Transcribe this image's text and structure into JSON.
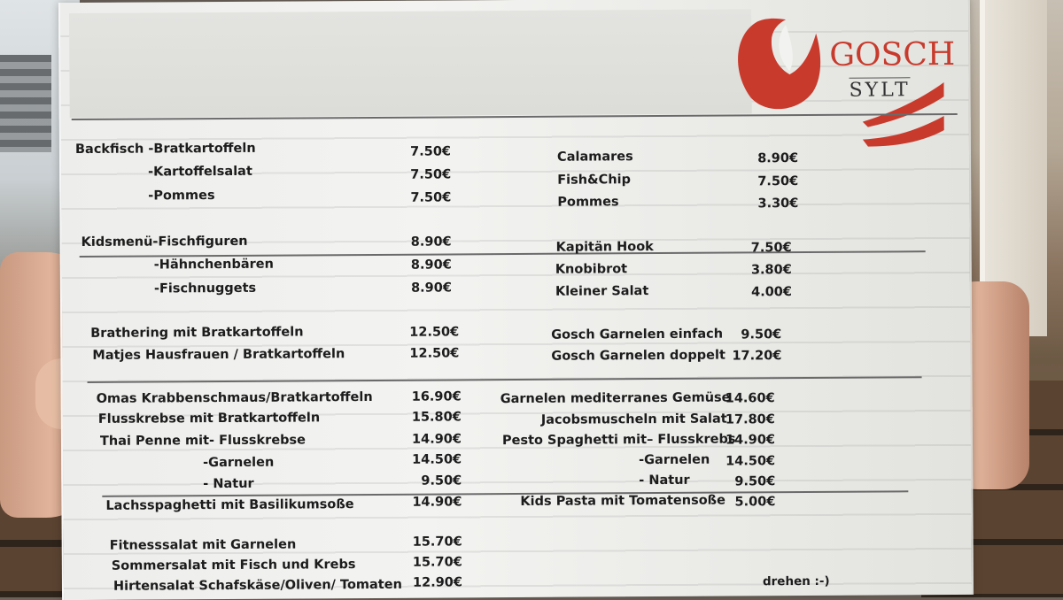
{
  "brand": {
    "name": "GOSCH",
    "location": "SYLT",
    "red": "#c83a2c"
  },
  "left_column": [
    {
      "name": "Backfisch -Bratkartoffeln",
      "price": "7.50€"
    },
    {
      "name": "-Kartoffelsalat",
      "price": "7.50€"
    },
    {
      "name": "-Pommes",
      "price": "7.50€"
    },
    {
      "name": "Kidsmenü-Fischfiguren",
      "price": "8.90€"
    },
    {
      "name": "-Hähnchenbären",
      "price": "8.90€"
    },
    {
      "name": "-Fischnuggets",
      "price": "8.90€"
    },
    {
      "name": "Brathering mit Bratkartoffeln",
      "price": "12.50€"
    },
    {
      "name": "Matjes Hausfrauen / Bratkartoffeln",
      "price": "12.50€"
    },
    {
      "name": "Omas Krabbenschmaus/Bratkartoffeln",
      "price": "16.90€"
    },
    {
      "name": "Flusskrebse mit Bratkartoffeln",
      "price": "15.80€"
    },
    {
      "name": "Thai Penne mit- Flusskrebse",
      "price": "14.90€"
    },
    {
      "name": "-Garnelen",
      "price": "14.50€"
    },
    {
      "name": "- Natur",
      "price": "9.50€"
    },
    {
      "name": "Lachsspaghetti mit Basilikumsoße",
      "price": "14.90€"
    },
    {
      "name": "Fitnesssalat mit Garnelen",
      "price": "15.70€"
    },
    {
      "name": "Sommersalat mit Fisch und Krebs",
      "price": "15.70€"
    },
    {
      "name": "Hirtensalat Schafskäse/Oliven/ Tomaten",
      "price": "12.90€"
    }
  ],
  "right_column": [
    {
      "name": "Calamares",
      "price": "8.90€"
    },
    {
      "name": "Fish&Chip",
      "price": "7.50€"
    },
    {
      "name": "Pommes",
      "price": "3.30€"
    },
    {
      "name": "Kapitän Hook",
      "price": "7.50€"
    },
    {
      "name": "Knobibrot",
      "price": "3.80€"
    },
    {
      "name": "Kleiner Salat",
      "price": "4.00€"
    },
    {
      "name": "Gosch Garnelen einfach",
      "price": "9.50€"
    },
    {
      "name": "Gosch Garnelen doppelt",
      "price": "17.20€"
    },
    {
      "name": "Garnelen mediterranes Gemüse",
      "price": "14.60€"
    },
    {
      "name": "Jacobsmuscheln mit Salat",
      "price": "17.80€"
    },
    {
      "name": "Pesto Spaghetti mit– Flusskrebs",
      "price": "14.90€"
    },
    {
      "name": "-Garnelen",
      "price": "14.50€"
    },
    {
      "name": "- Natur",
      "price": "9.50€"
    },
    {
      "name": "Kids Pasta mit Tomatensoße",
      "price": "5.00€"
    }
  ],
  "footer": {
    "turn_over": "drehen :-)"
  }
}
